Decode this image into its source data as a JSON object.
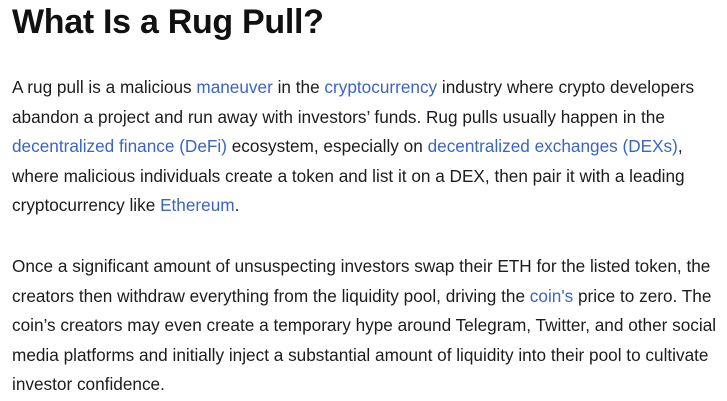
{
  "article": {
    "title": "What Is a Rug Pull?",
    "paragraph1": {
      "t1": "A rug pull is a malicious ",
      "link_maneuver": "maneuver",
      "t2": " in the ",
      "link_cryptocurrency": "cryptocurrency",
      "t3": " industry where crypto developers abandon a project and run away with investors’ funds. Rug pulls usually happen in the ",
      "link_defi": "decentralized finance (DeFi)",
      "t4": " ecosystem, especially on ",
      "link_dex": "decentralized exchanges (DEXs)",
      "t5": ", where malicious individuals create a token and list it on a DEX, then pair it with a leading cryptocurrency like ",
      "link_ethereum": "Ethereum",
      "t6": "."
    },
    "paragraph2": {
      "t1": "Once a significant amount of unsuspecting investors swap their ETH for the listed token, the creators then withdraw everything from the liquidity pool, driving the ",
      "link_coins": "coin's",
      "t2": " price to zero. The coin’s creators may even create a temporary hype around Telegram, Twitter, and other social media platforms and initially inject a substantial amount of liquidity into their pool to cultivate investor confidence."
    }
  },
  "colors": {
    "text": "#1c1c1c",
    "heading": "#111111",
    "link": "#3b64c8",
    "background": "#ffffff"
  }
}
